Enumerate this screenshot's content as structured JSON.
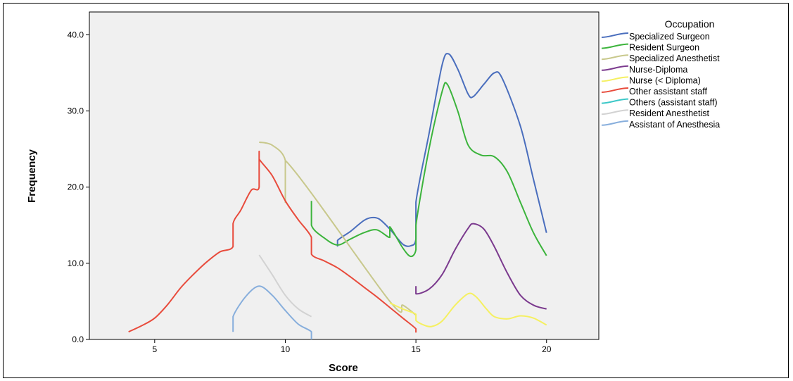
{
  "chart_data": {
    "type": "line",
    "title": "",
    "xlabel": "Score",
    "ylabel": "Frequency",
    "xlim": [
      2.5,
      22
    ],
    "ylim": [
      0,
      43
    ],
    "x_ticks": [
      5,
      10,
      15,
      20
    ],
    "y_ticks": [
      0,
      10,
      20,
      30,
      40
    ],
    "x_tick_labels": [
      "5",
      "10",
      "15",
      "20"
    ],
    "y_tick_labels": [
      "0.0",
      "10.0",
      "20.0",
      "30.0",
      "40.0"
    ],
    "plot_background": "#f0f0f0",
    "grid": false,
    "legend_title": "Occupation",
    "legend_position": "right",
    "series": [
      {
        "name": "Specialized Surgeon",
        "color": "#4a6ebd",
        "points": [
          [
            12,
            12.2
          ],
          [
            12,
            13
          ],
          [
            12.5,
            14.2
          ],
          [
            13,
            15.6
          ],
          [
            13.3,
            16
          ],
          [
            13.6,
            15.8
          ],
          [
            14,
            14.5
          ],
          [
            14.5,
            12.5
          ],
          [
            14.8,
            12.3
          ],
          [
            15,
            13.2
          ],
          [
            15,
            18
          ],
          [
            15.5,
            27
          ],
          [
            16,
            36
          ],
          [
            16.25,
            37.5
          ],
          [
            16.6,
            35.5
          ],
          [
            17,
            32.2
          ],
          [
            17.2,
            31.9
          ],
          [
            17.6,
            33.5
          ],
          [
            18,
            35
          ],
          [
            18.3,
            34.3
          ],
          [
            19,
            28
          ],
          [
            19.5,
            21
          ],
          [
            20,
            14
          ]
        ]
      },
      {
        "name": "Resident Surgeon",
        "color": "#3cb43c",
        "points": [
          [
            11,
            18.2
          ],
          [
            11,
            15
          ],
          [
            11.5,
            13.3
          ],
          [
            12,
            12.4
          ],
          [
            12.5,
            13.2
          ],
          [
            13,
            14
          ],
          [
            13.5,
            14.4
          ],
          [
            14,
            13.4
          ],
          [
            14,
            14.8
          ],
          [
            14.5,
            12
          ],
          [
            14.8,
            10.9
          ],
          [
            15,
            11.8
          ],
          [
            15,
            15
          ],
          [
            15.5,
            25
          ],
          [
            16,
            32.5
          ],
          [
            16.2,
            33.5
          ],
          [
            16.6,
            30
          ],
          [
            17,
            25.5
          ],
          [
            17.5,
            24.2
          ],
          [
            18,
            24
          ],
          [
            18.5,
            22
          ],
          [
            19,
            18
          ],
          [
            19.5,
            14
          ],
          [
            20,
            11
          ]
        ]
      },
      {
        "name": "Specialized Anesthetist",
        "color": "#c8c88c",
        "points": [
          [
            9,
            25.9
          ],
          [
            9.5,
            25.5
          ],
          [
            10,
            23.5
          ],
          [
            10,
            18
          ],
          [
            10,
            23.5
          ],
          [
            14,
            5
          ],
          [
            14.5,
            4.5
          ],
          [
            15,
            3.2
          ]
        ]
      },
      {
        "name": "Nurse-Diploma",
        "color": "#7b3a8e",
        "points": [
          [
            15,
            7
          ],
          [
            15,
            6
          ],
          [
            15.5,
            6.6
          ],
          [
            16,
            8.5
          ],
          [
            16.5,
            11.8
          ],
          [
            17,
            14.6
          ],
          [
            17.2,
            15.2
          ],
          [
            17.6,
            14.5
          ],
          [
            18,
            12.2
          ],
          [
            18.5,
            8.7
          ],
          [
            19,
            5.8
          ],
          [
            19.5,
            4.5
          ],
          [
            20,
            4
          ]
        ]
      },
      {
        "name": "Nurse (< Diploma)",
        "color": "#f5f060",
        "points": [
          [
            14,
            4.8
          ],
          [
            14.5,
            4
          ],
          [
            15,
            3.3
          ],
          [
            15,
            2.5
          ],
          [
            15.3,
            1.9
          ],
          [
            15.6,
            1.7
          ],
          [
            16,
            2.4
          ],
          [
            16.5,
            4.5
          ],
          [
            17,
            6
          ],
          [
            17.3,
            5.6
          ],
          [
            17.7,
            4
          ],
          [
            18,
            3
          ],
          [
            18.5,
            2.7
          ],
          [
            19,
            3.1
          ],
          [
            19.5,
            2.8
          ],
          [
            20,
            1.9
          ]
        ]
      },
      {
        "name": "Other assistant staff",
        "color": "#e84b3c",
        "points": [
          [
            4,
            1
          ],
          [
            4.5,
            1.8
          ],
          [
            5,
            2.8
          ],
          [
            5.5,
            4.6
          ],
          [
            6,
            6.8
          ],
          [
            6.5,
            8.6
          ],
          [
            7,
            10.2
          ],
          [
            7.5,
            11.5
          ],
          [
            8,
            12.2
          ],
          [
            8,
            15.2
          ],
          [
            8.3,
            17
          ],
          [
            8.7,
            19.6
          ],
          [
            9,
            20
          ],
          [
            9,
            24.7
          ],
          [
            9,
            23.7
          ],
          [
            9.5,
            21.5
          ],
          [
            10,
            18.2
          ],
          [
            10.5,
            15.7
          ],
          [
            11,
            13.4
          ],
          [
            11,
            11.2
          ],
          [
            11.5,
            10.3
          ],
          [
            12,
            9.4
          ],
          [
            12.5,
            8.2
          ],
          [
            13,
            6.9
          ],
          [
            13.5,
            5.6
          ],
          [
            14,
            4.2
          ],
          [
            14.5,
            2.8
          ],
          [
            15,
            1.4
          ],
          [
            15,
            0.9
          ]
        ]
      },
      {
        "name": "Others (assistant staff)",
        "color": "#3cc8c8",
        "points": []
      },
      {
        "name": "Resident Anesthetist",
        "color": "#d2d2d2",
        "points": [
          [
            9,
            11.1
          ],
          [
            9.5,
            8.5
          ],
          [
            10,
            5.8
          ],
          [
            10.5,
            4
          ],
          [
            11,
            3
          ]
        ]
      },
      {
        "name": "Assistant of Anesthesia",
        "color": "#87aedc",
        "points": [
          [
            8,
            1
          ],
          [
            8,
            3
          ],
          [
            8.5,
            5.7
          ],
          [
            9,
            7
          ],
          [
            9.5,
            5.8
          ],
          [
            10,
            3.8
          ],
          [
            10.5,
            2
          ],
          [
            11,
            1
          ],
          [
            11,
            0
          ]
        ]
      }
    ]
  }
}
